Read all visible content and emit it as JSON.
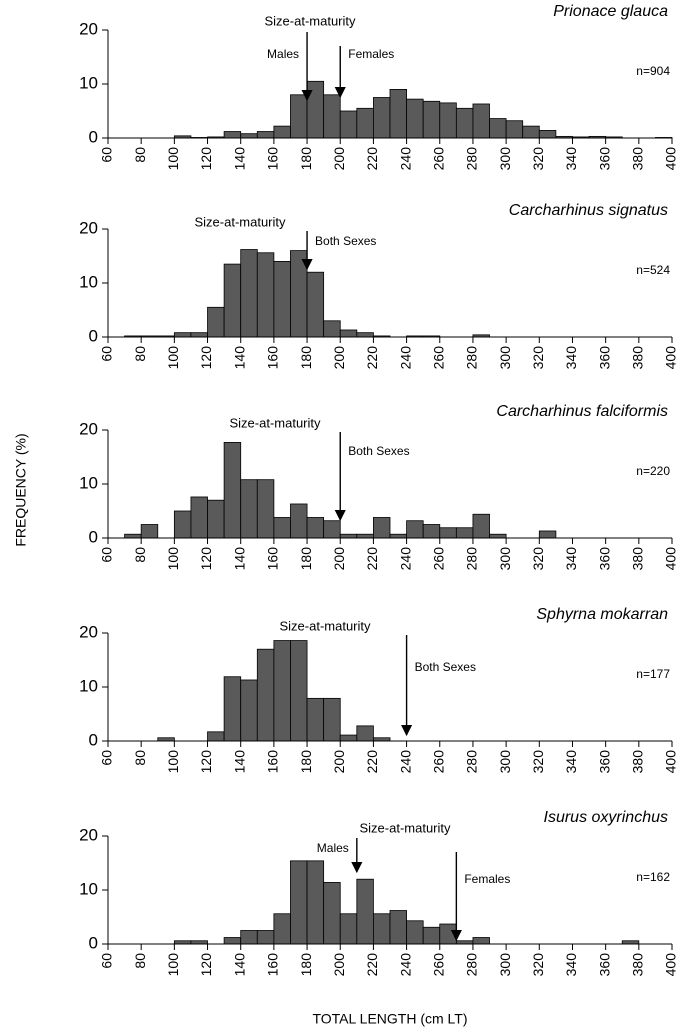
{
  "axis_labels": {
    "x": "TOTAL LENGTH (cm LT)",
    "y": "FREQUENCY (%)"
  },
  "chart_data": [
    {
      "type": "histogram",
      "title": "Prionace glauca",
      "n_label": "n=904",
      "annotation": "Size-at-maturity",
      "arrows": [
        {
          "x": 180,
          "label": "Males"
        },
        {
          "x": 200,
          "label": "Females"
        }
      ],
      "bins": [
        60,
        70,
        80,
        90,
        100,
        110,
        120,
        130,
        140,
        150,
        160,
        170,
        180,
        190,
        200,
        210,
        220,
        230,
        240,
        250,
        260,
        270,
        280,
        290,
        300,
        310,
        320,
        330,
        340,
        350,
        360,
        370,
        380,
        390,
        400
      ],
      "values": [
        0,
        0,
        0,
        0,
        0.4,
        0.1,
        0.2,
        1.2,
        0.8,
        1.2,
        2.2,
        8,
        10.5,
        8,
        5,
        5.5,
        7.5,
        9,
        7.2,
        6.8,
        6.5,
        5.5,
        6.3,
        3.6,
        3.2,
        2.2,
        1.4,
        0.3,
        0.2,
        0.3,
        0.2,
        0,
        0,
        0.1
      ],
      "color": "#5a5a5a",
      "xlim": [
        60,
        400
      ],
      "xticks": [
        60,
        80,
        100,
        120,
        140,
        160,
        180,
        200,
        220,
        240,
        260,
        280,
        300,
        320,
        340,
        360,
        380,
        400
      ],
      "ylim": [
        0,
        20
      ],
      "yticks": [
        0,
        10,
        20
      ]
    },
    {
      "type": "histogram",
      "title": "Carcharhinus signatus",
      "n_label": "n=524",
      "annotation": "Size-at-maturity",
      "arrows": [
        {
          "x": 180,
          "label": "Both Sexes"
        }
      ],
      "bins": [
        60,
        70,
        80,
        90,
        100,
        110,
        120,
        130,
        140,
        150,
        160,
        170,
        180,
        190,
        200,
        210,
        220,
        230,
        240,
        250,
        260,
        270,
        280,
        290,
        300,
        310,
        320,
        330,
        340,
        350,
        360,
        370,
        380,
        390,
        400
      ],
      "values": [
        0,
        0.2,
        0.2,
        0.2,
        0.8,
        0.8,
        5.5,
        13.5,
        16.2,
        15.6,
        14,
        16,
        12,
        3,
        1.3,
        0.8,
        0.2,
        0,
        0.2,
        0.2,
        0,
        0,
        0.4,
        0,
        0,
        0,
        0,
        0,
        0,
        0,
        0,
        0,
        0,
        0
      ],
      "color": "#5a5a5a",
      "xlim": [
        60,
        400
      ],
      "xticks": [
        60,
        80,
        100,
        120,
        140,
        160,
        180,
        200,
        220,
        240,
        260,
        280,
        300,
        320,
        340,
        360,
        380,
        400
      ],
      "ylim": [
        0,
        20
      ],
      "yticks": [
        0,
        10,
        20
      ]
    },
    {
      "type": "histogram",
      "title": "Carcharhinus falciformis",
      "n_label": "n=220",
      "annotation": "Size-at-maturity",
      "arrows": [
        {
          "x": 200,
          "label": "Both Sexes"
        }
      ],
      "bins": [
        60,
        70,
        80,
        90,
        100,
        110,
        120,
        130,
        140,
        150,
        160,
        170,
        180,
        190,
        200,
        210,
        220,
        230,
        240,
        250,
        260,
        270,
        280,
        290,
        300,
        310,
        320,
        330,
        340,
        350,
        360,
        370,
        380,
        390,
        400
      ],
      "values": [
        0,
        0.7,
        2.5,
        0,
        5,
        7.6,
        7,
        17.7,
        10.8,
        10.8,
        3.8,
        6.3,
        3.8,
        3.2,
        0.7,
        0.7,
        3.8,
        0.7,
        3.2,
        2.5,
        1.9,
        1.9,
        4.4,
        0.7,
        0,
        0,
        1.3,
        0,
        0,
        0,
        0,
        0,
        0,
        0
      ],
      "color": "#5a5a5a",
      "xlim": [
        60,
        400
      ],
      "xticks": [
        60,
        80,
        100,
        120,
        140,
        160,
        180,
        200,
        220,
        240,
        260,
        280,
        300,
        320,
        340,
        360,
        380,
        400
      ],
      "ylim": [
        0,
        20
      ],
      "yticks": [
        0,
        10,
        20
      ]
    },
    {
      "type": "histogram",
      "title": "Sphyrna mokarran",
      "n_label": "n=177",
      "annotation": "Size-at-maturity",
      "arrows": [
        {
          "x": 240,
          "label": "Both Sexes"
        }
      ],
      "bins": [
        60,
        70,
        80,
        90,
        100,
        110,
        120,
        130,
        140,
        150,
        160,
        170,
        180,
        190,
        200,
        210,
        220,
        230,
        240,
        250,
        260,
        270,
        280,
        290,
        300,
        310,
        320,
        330,
        340,
        350,
        360,
        370,
        380,
        390,
        400
      ],
      "values": [
        0,
        0,
        0,
        0.6,
        0,
        0,
        1.7,
        11.9,
        11.3,
        17,
        18.6,
        18.6,
        7.9,
        7.9,
        1.1,
        2.8,
        0.6,
        0,
        0,
        0,
        0,
        0,
        0,
        0,
        0,
        0,
        0,
        0,
        0,
        0,
        0,
        0,
        0,
        0
      ],
      "color": "#5a5a5a",
      "xlim": [
        60,
        400
      ],
      "xticks": [
        60,
        80,
        100,
        120,
        140,
        160,
        180,
        200,
        220,
        240,
        260,
        280,
        300,
        320,
        340,
        360,
        380,
        400
      ],
      "ylim": [
        0,
        20
      ],
      "yticks": [
        0,
        10,
        20
      ]
    },
    {
      "type": "histogram",
      "title": "Isurus oxyrinchus",
      "n_label": "n=162",
      "annotation": "Size-at-maturity",
      "arrows": [
        {
          "x": 210,
          "label": "Males"
        },
        {
          "x": 270,
          "label": "Females"
        }
      ],
      "bins": [
        60,
        70,
        80,
        90,
        100,
        110,
        120,
        130,
        140,
        150,
        160,
        170,
        180,
        190,
        200,
        210,
        220,
        230,
        240,
        250,
        260,
        270,
        280,
        290,
        300,
        310,
        320,
        330,
        340,
        350,
        360,
        370,
        380,
        390,
        400
      ],
      "values": [
        0,
        0,
        0,
        0,
        0.6,
        0.6,
        0,
        1.2,
        2.5,
        2.5,
        5.6,
        15.4,
        15.4,
        11.4,
        5.6,
        12,
        5.6,
        6.2,
        4.3,
        3.1,
        3.7,
        0.6,
        1.2,
        0,
        0,
        0,
        0,
        0,
        0,
        0,
        0,
        0.6,
        0,
        0
      ],
      "color": "#5a5a5a",
      "xlim": [
        60,
        400
      ],
      "xticks": [
        60,
        80,
        100,
        120,
        140,
        160,
        180,
        200,
        220,
        240,
        260,
        280,
        300,
        320,
        340,
        360,
        380,
        400
      ],
      "ylim": [
        0,
        20
      ],
      "yticks": [
        0,
        10,
        20
      ]
    }
  ]
}
